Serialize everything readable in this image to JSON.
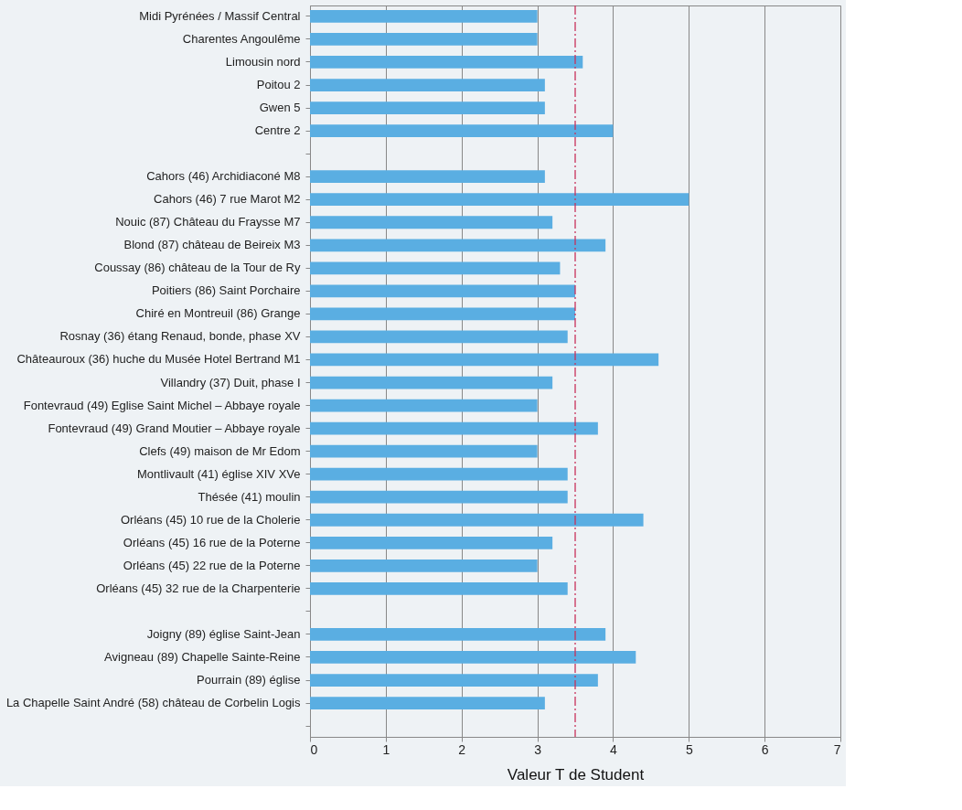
{
  "chart_data": {
    "type": "bar",
    "orientation": "horizontal",
    "xlabel": "Valeur T de Student",
    "categories": [
      "Midi Pyrénées / Massif Central",
      "Charentes Angoulême",
      "Limousin nord",
      "Poitou 2",
      "Gwen 5",
      "Centre 2",
      null,
      "Cahors (46) Archidiaconé M8",
      "Cahors (46) 7 rue Marot M2",
      "Nouic (87) Château du Fraysse M7",
      "Blond (87) château de Beireix M3",
      "Coussay (86) château de la Tour de Ry",
      "Poitiers (86) Saint Porchaire",
      "Chiré en Montreuil (86) Grange",
      "Rosnay (36) étang Renaud, bonde, phase XV",
      "Châteauroux (36) huche du Musée Hotel Bertrand M1",
      "Villandry (37) Duit, phase I",
      "Fontevraud (49) Eglise Saint Michel – Abbaye royale",
      "Fontevraud (49) Grand Moutier – Abbaye royale",
      "Clefs (49) maison de Mr Edom",
      "Montlivault (41) église XIV XVe",
      "Thésée (41) moulin",
      "Orléans (45) 10 rue de la Cholerie",
      "Orléans (45) 16 rue de la Poterne",
      "Orléans (45) 22 rue de la Poterne",
      "Orléans (45) 32 rue de la Charpenterie",
      null,
      "Joigny (89) église Saint-Jean",
      "Avigneau (89) Chapelle Sainte-Reine",
      "Pourrain (89) église",
      "La Chapelle Saint André (58) château de Corbelin Logis",
      null
    ],
    "series": [
      {
        "color": "#5aaee2",
        "values": [
          3.0,
          3.0,
          3.6,
          3.1,
          3.1,
          4.0,
          null,
          3.1,
          5.0,
          3.2,
          3.9,
          3.3,
          3.5,
          3.5,
          3.4,
          4.6,
          3.2,
          3.0,
          3.8,
          3.0,
          3.4,
          3.4,
          4.4,
          3.2,
          3.0,
          3.4,
          null,
          3.9,
          4.3,
          3.8,
          3.1,
          null
        ]
      }
    ],
    "xlim": [
      0,
      7
    ],
    "xticks": [
      0,
      1,
      2,
      3,
      4,
      5,
      6,
      7
    ],
    "grid": "x",
    "ref_lines": [
      {
        "axis": "x",
        "value": 3.5,
        "color": "#c8305a",
        "line_style": "dashdot"
      }
    ]
  }
}
